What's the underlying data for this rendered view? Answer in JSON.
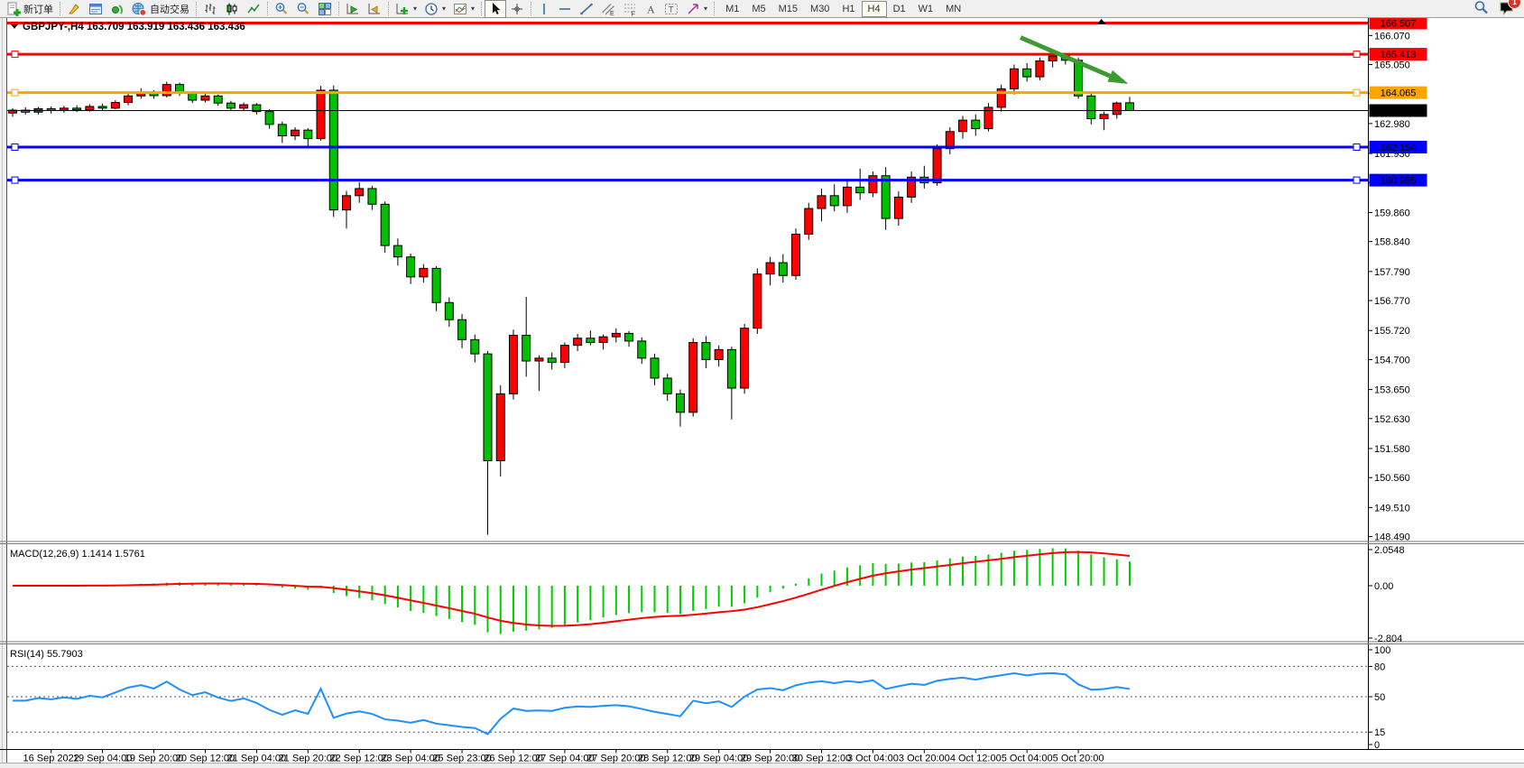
{
  "toolbar": {
    "new_order_label": "新订单",
    "autotrading_label": "自动交易",
    "timeframes": [
      "M1",
      "M5",
      "M15",
      "M30",
      "H1",
      "H4",
      "D1",
      "W1",
      "MN"
    ],
    "active_timeframe": "H4",
    "notification_count": "1"
  },
  "chart": {
    "title": "GBPJPY-,H4",
    "ohlc_readout": "163.709 163.919 163.436 163.436"
  },
  "chart_data": {
    "type": "candlestick",
    "symbol": "GBPJPY-",
    "timeframe": "H4",
    "background": "#FFFFFF",
    "price_range": {
      "max": 166.65,
      "min": 148.35
    },
    "colors": {
      "bull": "#FF0000",
      "bear": "#00C000",
      "outline": "#000000",
      "macd_histogram": "#00CD00",
      "macd_signal": "#FF0000",
      "rsi_line": "#1E90FF",
      "level_red": "#FF0000",
      "level_orange": "#FFA500",
      "level_blue": "#0000FF",
      "bid_line": "#000000"
    },
    "candles": [
      [
        163.35,
        163.52,
        163.22,
        163.45
      ],
      [
        163.45,
        163.55,
        163.3,
        163.38
      ],
      [
        163.38,
        163.56,
        163.3,
        163.5
      ],
      [
        163.5,
        163.58,
        163.33,
        163.44
      ],
      [
        163.44,
        163.6,
        163.36,
        163.52
      ],
      [
        163.52,
        163.62,
        163.38,
        163.46
      ],
      [
        163.46,
        163.66,
        163.4,
        163.58
      ],
      [
        163.58,
        163.68,
        163.44,
        163.52
      ],
      [
        163.52,
        163.8,
        163.48,
        163.72
      ],
      [
        163.72,
        164.02,
        163.62,
        163.95
      ],
      [
        163.95,
        164.22,
        163.85,
        164.08
      ],
      [
        164.08,
        164.15,
        163.85,
        163.96
      ],
      [
        163.96,
        164.45,
        163.9,
        164.35
      ],
      [
        164.35,
        164.42,
        163.95,
        164.05
      ],
      [
        164.05,
        164.12,
        163.7,
        163.8
      ],
      [
        163.8,
        164.02,
        163.72,
        163.95
      ],
      [
        163.95,
        164.0,
        163.6,
        163.7
      ],
      [
        163.7,
        163.78,
        163.42,
        163.52
      ],
      [
        163.52,
        163.72,
        163.45,
        163.64
      ],
      [
        163.64,
        163.7,
        163.3,
        163.4
      ],
      [
        163.4,
        163.48,
        162.8,
        162.95
      ],
      [
        162.95,
        163.05,
        162.3,
        162.55
      ],
      [
        162.55,
        162.85,
        162.4,
        162.75
      ],
      [
        162.75,
        162.82,
        162.2,
        162.45
      ],
      [
        162.45,
        164.3,
        162.38,
        164.15
      ],
      [
        164.15,
        164.32,
        159.7,
        159.95
      ],
      [
        159.95,
        160.62,
        159.3,
        160.45
      ],
      [
        160.45,
        160.92,
        160.2,
        160.7
      ],
      [
        160.7,
        160.8,
        159.95,
        160.15
      ],
      [
        160.15,
        160.25,
        158.45,
        158.7
      ],
      [
        158.7,
        158.95,
        158.0,
        158.3
      ],
      [
        158.3,
        158.42,
        157.35,
        157.6
      ],
      [
        157.6,
        158.05,
        157.4,
        157.9
      ],
      [
        157.9,
        157.98,
        156.4,
        156.7
      ],
      [
        156.7,
        156.88,
        155.85,
        156.1
      ],
      [
        156.1,
        156.3,
        155.1,
        155.4
      ],
      [
        155.4,
        155.58,
        154.6,
        154.9
      ],
      [
        154.9,
        155.0,
        148.55,
        151.15
      ],
      [
        151.15,
        153.8,
        150.6,
        153.5
      ],
      [
        153.5,
        155.75,
        153.3,
        155.55
      ],
      [
        155.55,
        156.9,
        154.1,
        154.65
      ],
      [
        154.65,
        154.85,
        153.6,
        154.75
      ],
      [
        154.75,
        154.95,
        154.35,
        154.6
      ],
      [
        154.6,
        155.3,
        154.4,
        155.2
      ],
      [
        155.2,
        155.6,
        155.0,
        155.45
      ],
      [
        155.45,
        155.72,
        155.2,
        155.3
      ],
      [
        155.3,
        155.58,
        155.05,
        155.5
      ],
      [
        155.5,
        155.8,
        155.3,
        155.62
      ],
      [
        155.62,
        155.7,
        155.15,
        155.35
      ],
      [
        155.35,
        155.48,
        154.55,
        154.75
      ],
      [
        154.75,
        154.9,
        153.8,
        154.05
      ],
      [
        154.05,
        154.2,
        153.25,
        153.5
      ],
      [
        153.5,
        153.65,
        152.35,
        152.85
      ],
      [
        152.85,
        155.45,
        152.7,
        155.3
      ],
      [
        155.3,
        155.52,
        154.4,
        154.7
      ],
      [
        154.7,
        155.2,
        154.45,
        155.05
      ],
      [
        155.05,
        155.15,
        152.6,
        153.7
      ],
      [
        153.7,
        155.95,
        153.5,
        155.8
      ],
      [
        155.8,
        157.9,
        155.6,
        157.7
      ],
      [
        157.7,
        158.3,
        157.3,
        158.1
      ],
      [
        158.1,
        158.4,
        157.4,
        157.65
      ],
      [
        157.65,
        159.3,
        157.5,
        159.1
      ],
      [
        159.1,
        160.2,
        158.9,
        160.0
      ],
      [
        160.0,
        160.7,
        159.55,
        160.45
      ],
      [
        160.45,
        160.85,
        159.9,
        160.1
      ],
      [
        160.1,
        160.95,
        159.85,
        160.75
      ],
      [
        160.75,
        161.4,
        160.3,
        160.55
      ],
      [
        160.55,
        161.3,
        160.4,
        161.15
      ],
      [
        161.15,
        161.45,
        159.25,
        159.65
      ],
      [
        159.65,
        160.6,
        159.4,
        160.4
      ],
      [
        160.4,
        161.3,
        160.2,
        161.1
      ],
      [
        161.1,
        161.5,
        160.7,
        160.9
      ],
      [
        160.9,
        162.25,
        160.8,
        162.1
      ],
      [
        162.1,
        162.85,
        161.9,
        162.7
      ],
      [
        162.7,
        163.25,
        162.45,
        163.1
      ],
      [
        163.1,
        163.3,
        162.55,
        162.8
      ],
      [
        162.8,
        163.7,
        162.7,
        163.55
      ],
      [
        163.55,
        164.35,
        163.4,
        164.2
      ],
      [
        164.2,
        165.05,
        164.0,
        164.9
      ],
      [
        164.9,
        165.1,
        164.45,
        164.62
      ],
      [
        164.62,
        165.3,
        164.5,
        165.18
      ],
      [
        165.18,
        165.42,
        164.95,
        165.35
      ],
      [
        165.35,
        165.45,
        165.05,
        165.2
      ],
      [
        165.2,
        165.3,
        163.85,
        163.95
      ],
      [
        163.95,
        164.1,
        162.95,
        163.15
      ],
      [
        163.15,
        163.4,
        162.75,
        163.3
      ],
      [
        163.3,
        163.75,
        163.15,
        163.7
      ],
      [
        163.709,
        163.919,
        163.436,
        163.436
      ]
    ],
    "time_labels": [
      "16 Sep 2022",
      "19 Sep 04:00",
      "19 Sep 20:00",
      "20 Sep 12:00",
      "21 Sep 04:00",
      "21 Sep 20:00",
      "22 Sep 12:00",
      "23 Sep 04:00",
      "25 Sep 23:00",
      "26 Sep 12:00",
      "27 Sep 04:00",
      "27 Sep 20:00",
      "28 Sep 12:00",
      "29 Sep 04:00",
      "29 Sep 20:00",
      "30 Sep 12:00",
      "3 Oct 04:00",
      "3 Oct 20:00",
      "4 Oct 12:00",
      "5 Oct 04:00",
      "5 Oct 20:00"
    ],
    "time_label_start_index": 3,
    "time_label_step": 4,
    "price_axis_ticks": [
      166.07,
      165.05,
      164.03,
      162.98,
      161.93,
      160.91,
      159.86,
      158.84,
      157.79,
      156.77,
      155.72,
      154.7,
      153.65,
      152.63,
      151.58,
      150.56,
      149.51,
      148.49
    ],
    "levels": [
      {
        "price": 166.507,
        "label": "166.507",
        "color": "#FF0000",
        "width": 3,
        "handles": false
      },
      {
        "price": 165.413,
        "label": "165.413",
        "color": "#FF0000",
        "width": 3,
        "handles": true
      },
      {
        "price": 164.065,
        "label": "164.065",
        "color": "#FFA500",
        "width": 3,
        "handles": true
      },
      {
        "price": 163.436,
        "label": "163.436",
        "color": "#000000",
        "width": 1,
        "handles": false,
        "is_current_price": true
      },
      {
        "price": 162.154,
        "label": "162.154",
        "color": "#0000FF",
        "width": 3,
        "handles": true
      },
      {
        "price": 160.995,
        "label": "160.995",
        "color": "#0000FF",
        "width": 3,
        "handles": true
      }
    ],
    "annotations": [
      {
        "type": "trend-arrow",
        "from_index": 78.5,
        "from_price": 166.0,
        "to_index": 86.5,
        "to_price": 164.45,
        "color": "#3B9C31",
        "width": 5
      }
    ],
    "shift_marker_index": 84.8,
    "indicators": {
      "macd": {
        "label": "MACD(12,26,9) 1.1414 1.5761",
        "fast": 12,
        "slow": 26,
        "signal": 9,
        "value": 1.1414,
        "signal_value": 1.5761,
        "range": {
          "max": 2.0548,
          "min": -2.804
        },
        "axis_labels": {
          "top": "2.0548",
          "zero": "0.00",
          "bottom": "-2.804"
        }
      },
      "rsi": {
        "label": "RSI(14) 55.7903",
        "period": 14,
        "value": 55.7903,
        "range": {
          "max": 100,
          "min": 0
        },
        "levels": [
          80,
          50,
          15
        ],
        "axis_labels": [
          "100",
          "80",
          "50",
          "15",
          "0"
        ]
      }
    }
  }
}
